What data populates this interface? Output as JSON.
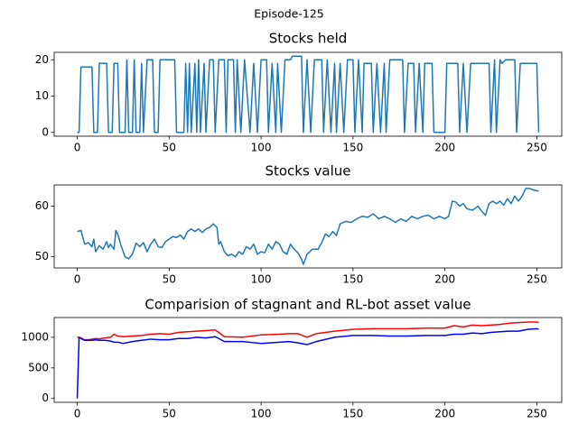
{
  "title": "Episode-125",
  "chart_data": [
    {
      "type": "line",
      "title": "Stocks held",
      "color": "#1f77b4",
      "x": [
        0,
        1,
        2,
        8,
        9,
        11,
        12,
        16,
        17,
        19,
        20,
        22,
        23,
        26,
        27,
        28,
        30,
        31,
        32,
        34,
        35,
        36,
        38,
        41,
        42,
        44,
        45,
        53,
        54,
        58,
        59,
        60,
        61,
        62,
        64,
        65,
        66,
        67,
        69,
        70,
        72,
        74,
        75,
        77,
        80,
        81,
        82,
        85,
        86,
        87,
        89,
        91,
        94,
        96,
        98,
        100,
        103,
        104,
        106,
        108,
        109,
        111,
        113,
        116,
        117,
        122,
        123,
        125,
        127,
        129,
        133,
        134,
        136,
        138,
        140,
        141,
        143,
        145,
        147,
        150,
        151,
        153,
        155,
        156,
        160,
        161,
        163,
        165,
        167,
        168,
        170,
        177,
        178,
        180,
        183,
        184,
        186,
        188,
        189,
        193,
        194,
        200,
        201,
        207,
        208,
        210,
        212,
        214,
        224,
        225,
        227,
        228,
        230,
        231,
        233,
        238,
        239,
        241,
        250,
        251
      ],
      "values": [
        0,
        0,
        18,
        18,
        0,
        0,
        19,
        19,
        0,
        0,
        19,
        19,
        0,
        0,
        20,
        0,
        0,
        20,
        0,
        0,
        19,
        0,
        20,
        20,
        0,
        0,
        20,
        20,
        0,
        0,
        19,
        0,
        19,
        0,
        19,
        0,
        20,
        0,
        19,
        0,
        20,
        20,
        0,
        20,
        20,
        0,
        20,
        20,
        0,
        20,
        0,
        20,
        0,
        19,
        0,
        20,
        20,
        0,
        19,
        0,
        19,
        0,
        20,
        20,
        21,
        21,
        0,
        20,
        0,
        20,
        20,
        0,
        20,
        0,
        19,
        0,
        19,
        0,
        20,
        20,
        0,
        20,
        0,
        19,
        19,
        0,
        19,
        0,
        19,
        0,
        20,
        20,
        0,
        19,
        19,
        0,
        19,
        0,
        19,
        19,
        0,
        0,
        19,
        19,
        0,
        19,
        0,
        19,
        19,
        0,
        20,
        0,
        20,
        19,
        20,
        20,
        0,
        19,
        19,
        0
      ],
      "xlim": [
        -12.55,
        263.55
      ],
      "xticks": [
        0,
        50,
        100,
        150,
        200,
        250
      ],
      "ylim": [
        -1.05,
        22.05
      ],
      "yticks": [
        0,
        10,
        20
      ]
    },
    {
      "type": "line",
      "title": "Stocks value",
      "color": "#1f77b4",
      "x": [
        0,
        2,
        4,
        6,
        8,
        9,
        10,
        12,
        14,
        16,
        17,
        18,
        20,
        21,
        22,
        24,
        26,
        28,
        30,
        32,
        34,
        36,
        38,
        40,
        42,
        44,
        46,
        48,
        50,
        52,
        54,
        56,
        58,
        60,
        62,
        64,
        66,
        68,
        70,
        72,
        74,
        76,
        77,
        78,
        80,
        82,
        84,
        86,
        88,
        90,
        92,
        94,
        96,
        98,
        100,
        102,
        104,
        106,
        108,
        110,
        112,
        114,
        116,
        118,
        120,
        122,
        123,
        125,
        128,
        131,
        133,
        135,
        137,
        139,
        141,
        143,
        146,
        149,
        152,
        155,
        158,
        161,
        164,
        167,
        170,
        173,
        176,
        179,
        182,
        185,
        188,
        191,
        194,
        197,
        200,
        202,
        204,
        206,
        208,
        210,
        212,
        215,
        218,
        220,
        222,
        224,
        226,
        228,
        230,
        232,
        234,
        236,
        238,
        240,
        242,
        244,
        246,
        248,
        251
      ],
      "values": [
        55,
        55.2,
        52.5,
        52.8,
        52,
        53.5,
        51,
        52.2,
        51.5,
        53,
        51.8,
        52.5,
        51.5,
        55.2,
        54.5,
        52,
        50,
        49.6,
        50.5,
        52.7,
        52,
        52.8,
        51,
        52.5,
        53.5,
        52,
        51.8,
        53,
        53.5,
        54,
        53.8,
        54.3,
        53.5,
        55,
        55.5,
        55,
        55.5,
        54.8,
        55.5,
        55.8,
        56.5,
        55.8,
        52.5,
        53,
        51,
        50.2,
        50.5,
        50,
        51,
        50.5,
        52,
        51.5,
        52.5,
        50.5,
        51,
        50.8,
        52.5,
        51.5,
        53,
        52.5,
        51,
        50.5,
        52.5,
        51.5,
        50.8,
        49.5,
        48.5,
        50.5,
        51.5,
        51.5,
        52.8,
        54.5,
        54,
        55,
        54.2,
        56.5,
        57,
        56.8,
        57.5,
        58,
        57.8,
        58.5,
        57.5,
        58,
        57.5,
        56.8,
        57.5,
        57,
        58,
        57.5,
        58,
        58.2,
        57.5,
        58,
        57.5,
        58,
        61,
        60.8,
        60,
        60.5,
        59.5,
        59.2,
        60,
        59,
        58.2,
        60.5,
        61,
        60.5,
        61,
        60.2,
        61.5,
        60.5,
        62,
        61,
        62,
        63.5,
        63.5,
        63.2,
        63
      ],
      "xlim": [
        -12.55,
        263.55
      ],
      "xticks": [
        0,
        50,
        100,
        150,
        200,
        250
      ],
      "ylim": [
        47.8,
        64.2
      ],
      "yticks": [
        50,
        60
      ]
    },
    {
      "type": "line",
      "title": "Comparision of stagnant and RL-bot asset value",
      "x": [
        0,
        1,
        2,
        4,
        6,
        8,
        10,
        12,
        15,
        18,
        20,
        22,
        25,
        30,
        35,
        40,
        45,
        50,
        55,
        60,
        65,
        70,
        75,
        77,
        80,
        90,
        100,
        110,
        115,
        120,
        125,
        130,
        140,
        150,
        160,
        170,
        180,
        190,
        200,
        205,
        210,
        215,
        220,
        225,
        230,
        235,
        240,
        245,
        250,
        251
      ],
      "series": [
        {
          "color": "#ff0000",
          "values": [
            1000,
            1000,
            990,
            960,
            960,
            970,
            980,
            975,
            990,
            1000,
            1050,
            1020,
            1010,
            1020,
            1030,
            1050,
            1060,
            1050,
            1080,
            1090,
            1100,
            1110,
            1120,
            1080,
            1010,
            1000,
            1040,
            1050,
            1060,
            1060,
            1000,
            1060,
            1100,
            1130,
            1140,
            1140,
            1140,
            1150,
            1150,
            1190,
            1170,
            1200,
            1190,
            1200,
            1210,
            1230,
            1240,
            1250,
            1250,
            1240
          ]
        },
        {
          "color": "#0000ff",
          "values": [
            0,
            1000,
            980,
            950,
            950,
            950,
            960,
            950,
            950,
            940,
            920,
            920,
            900,
            930,
            950,
            970,
            960,
            960,
            980,
            980,
            1000,
            990,
            1010,
            980,
            930,
            930,
            900,
            920,
            930,
            910,
            880,
            930,
            1000,
            1030,
            1030,
            1020,
            1020,
            1030,
            1030,
            1050,
            1050,
            1070,
            1060,
            1080,
            1090,
            1100,
            1100,
            1130,
            1140,
            1130
          ]
        }
      ],
      "xlim": [
        -12.55,
        263.55
      ],
      "xticks": [
        0,
        50,
        100,
        150,
        200,
        250
      ],
      "ylim": [
        -63,
        1323
      ],
      "yticks": [
        0,
        500,
        1000
      ]
    }
  ]
}
